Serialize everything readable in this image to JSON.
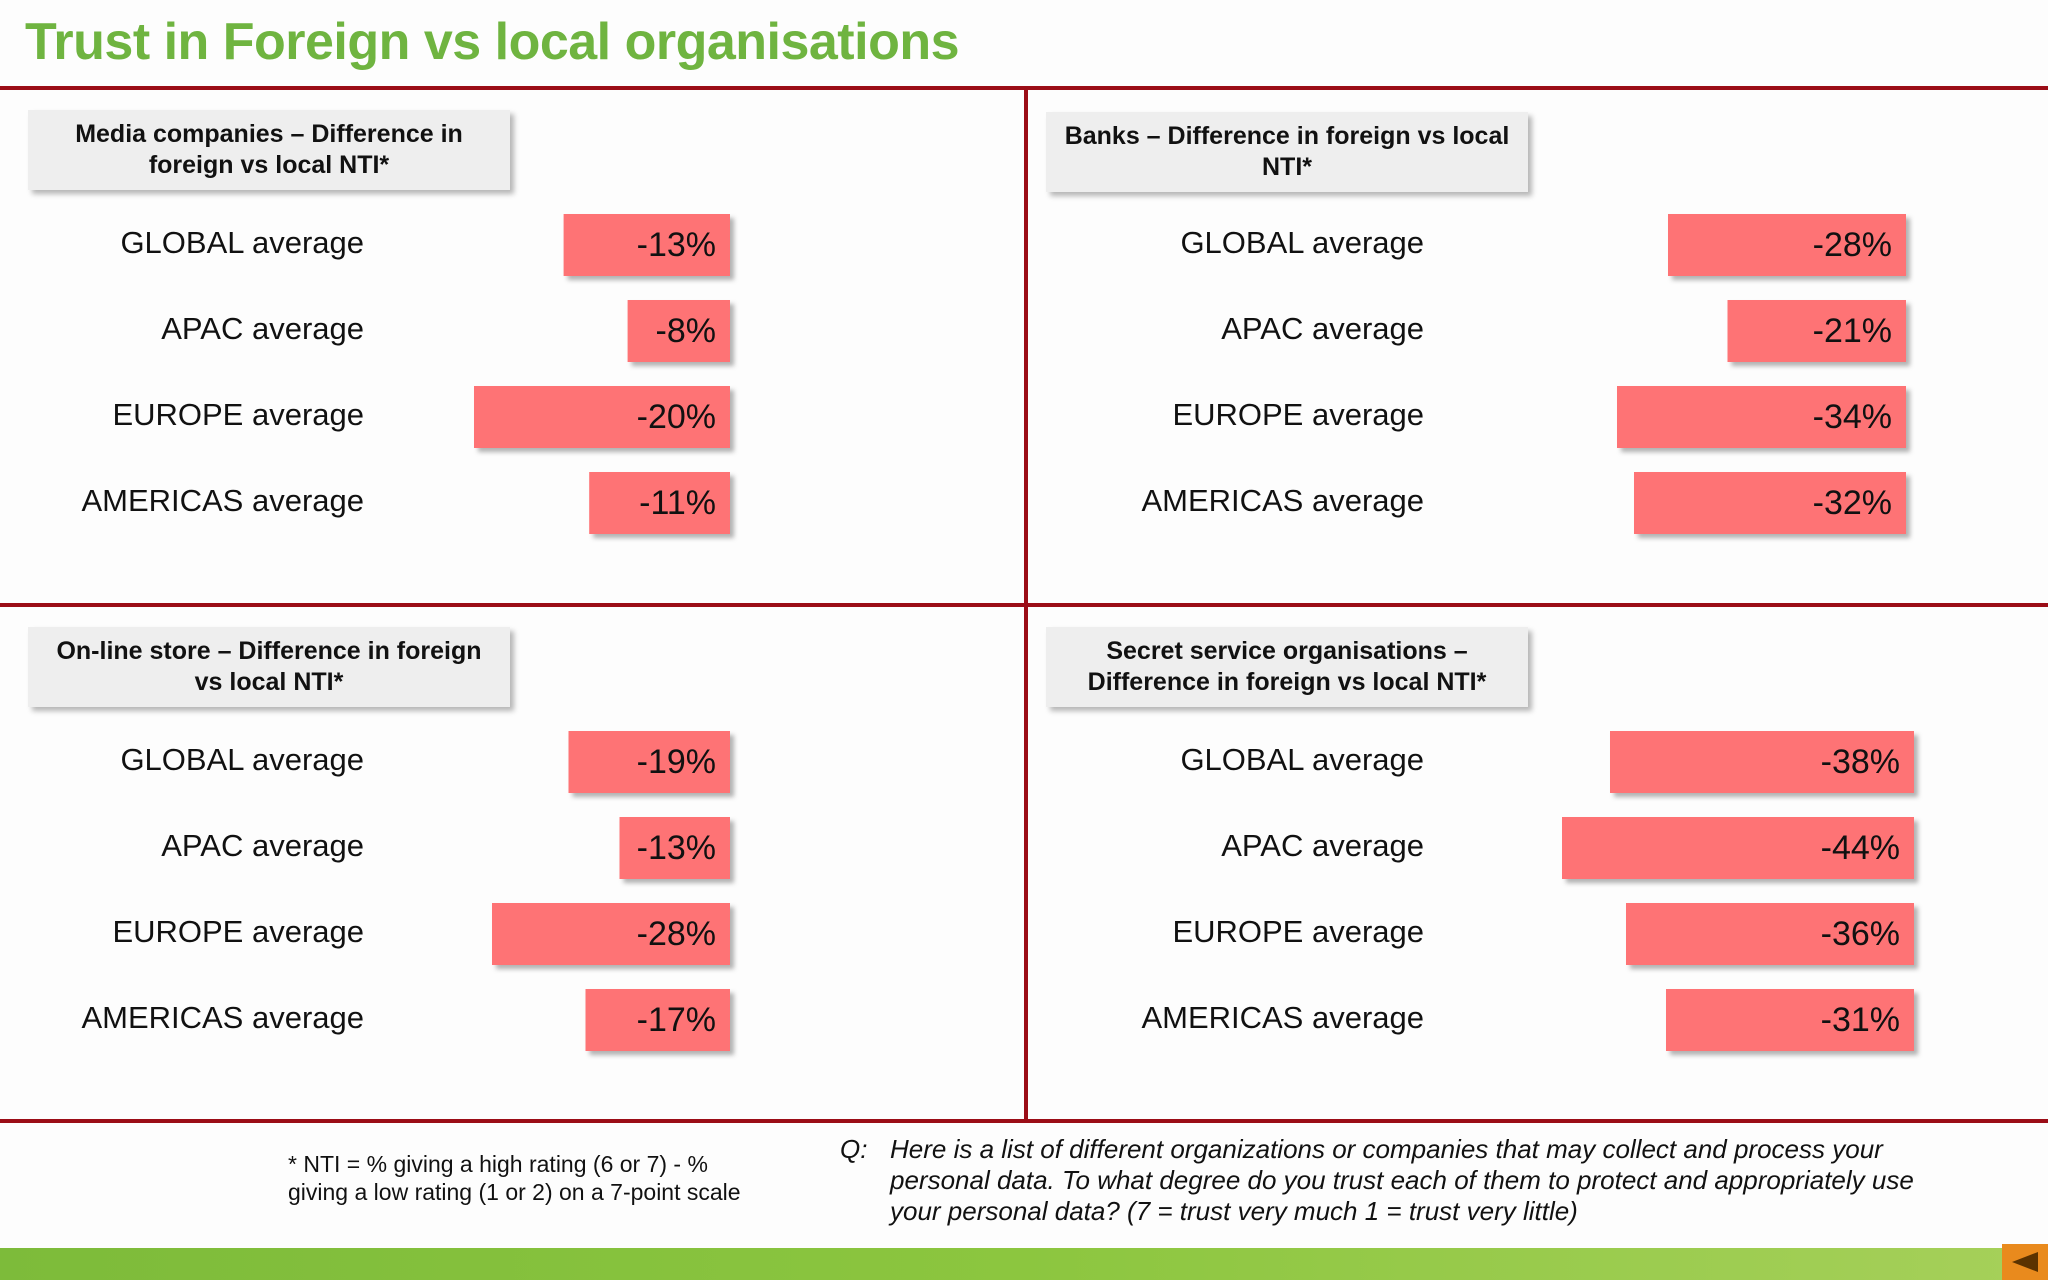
{
  "title": "Trust in Foreign vs local organisations",
  "colors": {
    "title": "#6fb440",
    "divider": "#9b0d17",
    "bar": "#fe7374",
    "band": "#8cc63f",
    "nav_button": "#e98a1d"
  },
  "chart_data": [
    {
      "type": "bar",
      "orientation": "horizontal",
      "title": "Media companies – Difference in foreign vs local NTI*",
      "categories": [
        "GLOBAL average",
        "APAC average",
        "EUROPE average",
        "AMERICAS average"
      ],
      "values": [
        -13,
        -8,
        -20,
        -11
      ],
      "value_labels": [
        "-13%",
        "-8%",
        "-20%",
        "-11%"
      ]
    },
    {
      "type": "bar",
      "orientation": "horizontal",
      "title": "Banks – Difference in foreign vs local NTI*",
      "categories": [
        "GLOBAL average",
        "APAC average",
        "EUROPE average",
        "AMERICAS average"
      ],
      "values": [
        -28,
        -21,
        -34,
        -32
      ],
      "value_labels": [
        "-28%",
        "-21%",
        "-34%",
        "-32%"
      ]
    },
    {
      "type": "bar",
      "orientation": "horizontal",
      "title": "On-line store – Difference in foreign vs local NTI*",
      "categories": [
        "GLOBAL average",
        "APAC average",
        "EUROPE average",
        "AMERICAS average"
      ],
      "values": [
        -19,
        -13,
        -28,
        -17
      ],
      "value_labels": [
        "-19%",
        "-13%",
        "-28%",
        "-17%"
      ]
    },
    {
      "type": "bar",
      "orientation": "horizontal",
      "title": "Secret service organisations – Difference in foreign vs local NTI*",
      "categories": [
        "GLOBAL average",
        "APAC average",
        "EUROPE average",
        "AMERICAS average"
      ],
      "values": [
        -38,
        -44,
        -36,
        -31
      ],
      "value_labels": [
        "-38%",
        "-44%",
        "-36%",
        "-31%"
      ]
    }
  ],
  "footnote": "* NTI = % giving a high rating (6 or 7) - % giving a low rating (1 or 2) on a 7-point scale",
  "question": {
    "prefix": "Q:",
    "text": "Here is a list of different organizations or companies that may collect and process your personal data.  To what degree do you trust each of them to protect and appropriately use your personal data? (7 = trust very much 1 = trust very little)"
  },
  "nav": {
    "icon": "triangle-left-icon"
  }
}
